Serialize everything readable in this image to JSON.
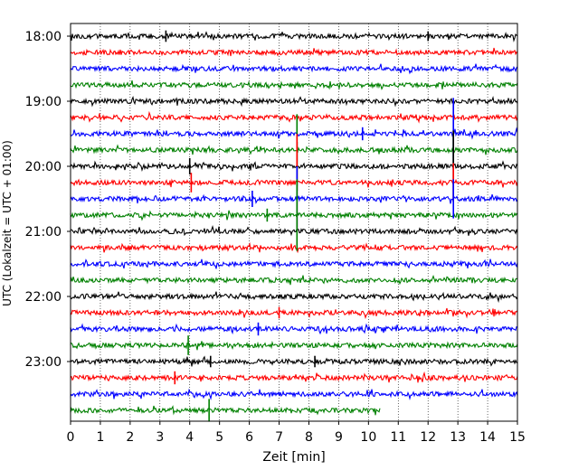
{
  "chart_data": {
    "type": "line",
    "xlabel": "Zeit  [min]",
    "ylabel": "UTC (Lokalzeit = UTC + 01:00)",
    "xlim": [
      0,
      15
    ],
    "x_ticks": [
      0,
      1,
      2,
      3,
      4,
      5,
      6,
      7,
      8,
      9,
      10,
      11,
      12,
      13,
      14,
      15
    ],
    "y_tick_labels": [
      "18:00",
      "19:00",
      "20:00",
      "21:00",
      "22:00",
      "23:00"
    ],
    "y_tick_row_indices": [
      0,
      4,
      8,
      12,
      16,
      20
    ],
    "grid": "vertical dotted at each minute",
    "line_minutes": 15,
    "trace_colors": [
      "#000000",
      "#ff0000",
      "#0000ff",
      "#008000"
    ],
    "traces": [
      {
        "start": "18:00",
        "color": "#000000",
        "end_min": 15
      },
      {
        "start": "18:15",
        "color": "#ff0000",
        "end_min": 15
      },
      {
        "start": "18:30",
        "color": "#0000ff",
        "end_min": 15
      },
      {
        "start": "18:45",
        "color": "#008000",
        "end_min": 15
      },
      {
        "start": "19:00",
        "color": "#000000",
        "end_min": 15
      },
      {
        "start": "19:15",
        "color": "#ff0000",
        "end_min": 15
      },
      {
        "start": "19:30",
        "color": "#0000ff",
        "end_min": 15
      },
      {
        "start": "19:45",
        "color": "#008000",
        "end_min": 15
      },
      {
        "start": "20:00",
        "color": "#000000",
        "end_min": 15
      },
      {
        "start": "20:15",
        "color": "#ff0000",
        "end_min": 15
      },
      {
        "start": "20:30",
        "color": "#0000ff",
        "end_min": 15
      },
      {
        "start": "20:45",
        "color": "#008000",
        "end_min": 15
      },
      {
        "start": "21:00",
        "color": "#000000",
        "end_min": 15
      },
      {
        "start": "21:15",
        "color": "#ff0000",
        "end_min": 15
      },
      {
        "start": "21:30",
        "color": "#0000ff",
        "end_min": 15
      },
      {
        "start": "21:45",
        "color": "#008000",
        "end_min": 15
      },
      {
        "start": "22:00",
        "color": "#000000",
        "end_min": 15
      },
      {
        "start": "22:15",
        "color": "#ff0000",
        "end_min": 15
      },
      {
        "start": "22:30",
        "color": "#0000ff",
        "end_min": 15
      },
      {
        "start": "22:45",
        "color": "#008000",
        "end_min": 15
      },
      {
        "start": "23:00",
        "color": "#000000",
        "end_min": 15
      },
      {
        "start": "23:15",
        "color": "#ff0000",
        "end_min": 15
      },
      {
        "start": "23:30",
        "color": "#0000ff",
        "end_min": 15
      },
      {
        "start": "23:45",
        "color": "#008000",
        "end_min": 10.4
      }
    ],
    "spikes": [
      {
        "trace": "18:00",
        "minute": 3.2,
        "amplitude": 0.35
      },
      {
        "trace": "18:00",
        "minute": 12.0,
        "amplitude": 0.3
      },
      {
        "trace": "19:30",
        "minute": 9.8,
        "amplitude": 0.4
      },
      {
        "trace": "19:30",
        "minute": 12.85,
        "amplitude": 2.2
      },
      {
        "trace": "19:45",
        "minute": 12.85,
        "amplitude": 1.0
      },
      {
        "trace": "20:00",
        "minute": 12.85,
        "amplitude": 2.2
      },
      {
        "trace": "20:15",
        "minute": 12.85,
        "amplitude": 1.2
      },
      {
        "trace": "20:30",
        "minute": 12.85,
        "amplitude": 1.2
      },
      {
        "trace": "20:00",
        "minute": 4.0,
        "amplitude": 0.5
      },
      {
        "trace": "20:15",
        "minute": 4.05,
        "amplitude": 0.6
      },
      {
        "trace": "19:45",
        "minute": 7.6,
        "amplitude": 2.2
      },
      {
        "trace": "20:00",
        "minute": 7.6,
        "amplitude": 1.5
      },
      {
        "trace": "20:15",
        "minute": 7.6,
        "amplitude": 3.0
      },
      {
        "trace": "20:30",
        "minute": 7.6,
        "amplitude": 2.0
      },
      {
        "trace": "20:45",
        "minute": 7.6,
        "amplitude": 2.2
      },
      {
        "trace": "20:30",
        "minute": 6.1,
        "amplitude": 0.5
      },
      {
        "trace": "20:45",
        "minute": 6.6,
        "amplitude": 0.4
      },
      {
        "trace": "22:15",
        "minute": 7.0,
        "amplitude": 0.35
      },
      {
        "trace": "22:30",
        "minute": 6.3,
        "amplitude": 0.4
      },
      {
        "trace": "22:45",
        "minute": 3.95,
        "amplitude": 0.6
      },
      {
        "trace": "23:00",
        "minute": 4.7,
        "amplitude": 0.35
      },
      {
        "trace": "23:00",
        "minute": 8.2,
        "amplitude": 0.35
      },
      {
        "trace": "23:15",
        "minute": 3.5,
        "amplitude": 0.4
      },
      {
        "trace": "23:45",
        "minute": 4.65,
        "amplitude": 0.7
      }
    ]
  }
}
